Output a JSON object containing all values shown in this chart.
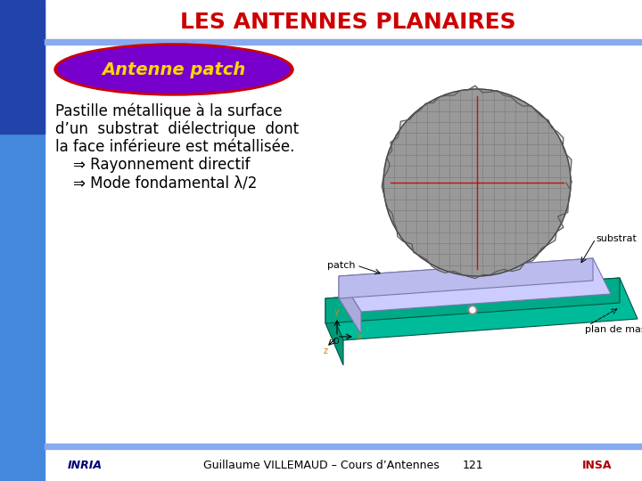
{
  "title": "LES ANTENNES PLANAIRES",
  "title_color": "#CC0000",
  "title_fontsize": 18,
  "subtitle": "Antenne patch",
  "subtitle_color": "#FFD700",
  "subtitle_bg_color": "#7700CC",
  "subtitle_border_color": "#CC0000",
  "bg_color": "#FFFFFF",
  "left_sidebar_color": "#4488DD",
  "top_bar_color": "#88AAEE",
  "bottom_bar_color": "#88AAEE",
  "body_text_line1": "Pastille métallique à la surface",
  "body_text_line2": "d’un  substrat  diélectrique  dont",
  "body_text_line3": "la face inférieure est métallisée.",
  "arrow_line1": "⇒ Rayonnement directif",
  "arrow_line2": "⇒ Mode fondamental λ/2",
  "body_text_color": "#000000",
  "body_text_fontsize": 12,
  "footer_text": "Guillaume VILLEMAUD – Cours d’Antennes",
  "footer_page": "121",
  "footer_color": "#000000",
  "footer_fontsize": 9,
  "label_substrat": "substrat",
  "label_patch": "patch",
  "label_plan_de_masse": "plan de masse",
  "ground_color": "#00BB99",
  "ground_side_color": "#009977",
  "ground_front_color": "#00AA88",
  "substrate_top_color": "#CCCCFF",
  "substrate_side_color": "#AAAADD",
  "patch_circle_color": "#999999",
  "patch_grid_color": "#777777",
  "patch_line_color": "#CC0000"
}
